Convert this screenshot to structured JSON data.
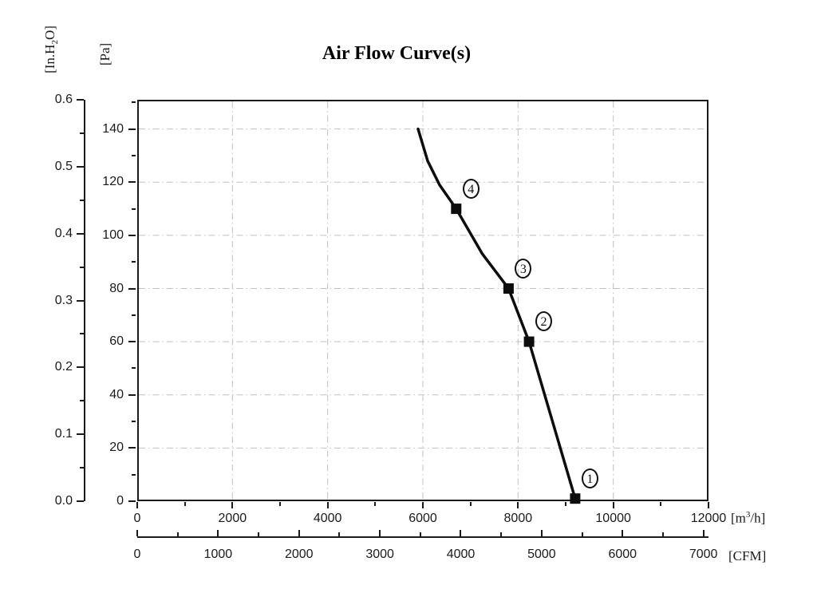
{
  "chart_data": {
    "type": "line",
    "title": "Air Flow Curve(s)",
    "x_axis_m3h": {
      "unit_prefix": "[m",
      "unit_sup": "3",
      "unit_suffix": "/h]",
      "tick_labels": [
        0,
        2000,
        4000,
        6000,
        8000,
        10000,
        12000
      ],
      "minor_step": 1000,
      "xlim": [
        0,
        12000
      ]
    },
    "x_axis_cfm": {
      "unit": "[CFM]",
      "tick_labels": [
        0,
        1000,
        2000,
        3000,
        4000,
        5000,
        6000,
        7000
      ],
      "minor_step": 500,
      "m3h_per_cfm": 1.699
    },
    "y_axis_pa": {
      "unit": "[Pa]",
      "tick_labels": [
        0,
        20,
        40,
        60,
        80,
        100,
        120,
        140
      ],
      "minor_step": 10,
      "ylim": [
        0,
        151
      ]
    },
    "y_axis_inh2o": {
      "unit_prefix": "[In.H",
      "unit_sub": "2",
      "unit_suffix": "O]",
      "tick_labels": [
        "0.0",
        "0.1",
        "0.2",
        "0.3",
        "0.4",
        "0.5",
        "0.6"
      ],
      "minor_step": 0.05,
      "max": 0.6
    },
    "grid": {
      "x_lines_m3h": [
        2000,
        4000,
        6000,
        8000,
        10000
      ],
      "y_lines_pa": [
        20,
        40,
        60,
        80,
        100,
        120,
        140
      ],
      "style": "dash-dot"
    },
    "series": [
      {
        "name": "air-flow-curve",
        "points_m3h_pa": [
          [
            5900,
            140
          ],
          [
            6100,
            128
          ],
          [
            6350,
            119
          ],
          [
            6700,
            110
          ],
          [
            7250,
            93
          ],
          [
            7800,
            80
          ],
          [
            8230,
            60
          ],
          [
            9200,
            1
          ]
        ]
      }
    ],
    "operating_points": [
      {
        "label": "1",
        "m3h": 9200,
        "pa": 1
      },
      {
        "label": "2",
        "m3h": 8230,
        "pa": 60
      },
      {
        "label": "3",
        "m3h": 7800,
        "pa": 80
      },
      {
        "label": "4",
        "m3h": 6700,
        "pa": 110
      }
    ],
    "colors": {
      "line": "#0d0d0d",
      "marker": "#0d0d0d",
      "frame": "#1a1a1a",
      "text": "#1a1a1a",
      "grid": "#c0c0c0",
      "background": "#ffffff"
    }
  }
}
